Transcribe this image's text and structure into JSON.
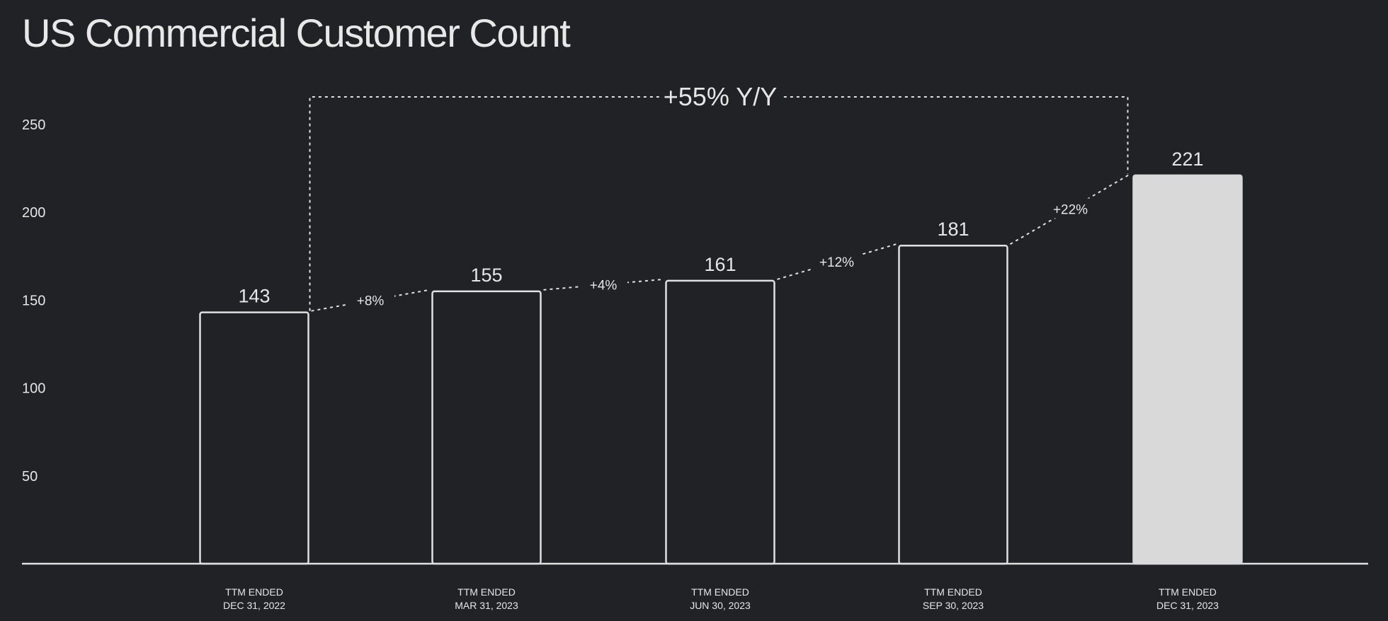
{
  "chart_data": {
    "type": "bar",
    "title": "US Commercial Customer Count",
    "categories": [
      [
        "TTM ENDED",
        "DEC 31, 2022"
      ],
      [
        "TTM ENDED",
        "MAR 31, 2023"
      ],
      [
        "TTM ENDED",
        "JUN 30, 2023"
      ],
      [
        "TTM ENDED",
        "SEP 30, 2023"
      ],
      [
        "TTM ENDED",
        "DEC 31, 2023"
      ]
    ],
    "values": [
      143,
      155,
      161,
      181,
      221
    ],
    "value_labels": [
      "143",
      "155",
      "161",
      "181",
      "221"
    ],
    "highlighted_index": 4,
    "yticks": [
      50,
      100,
      150,
      200,
      250
    ],
    "ylim": [
      0,
      270
    ],
    "grid": false,
    "growth_labels": [
      "+8%",
      "+4%",
      "+12%",
      "+22%"
    ],
    "yoy_label": "+55% Y/Y",
    "colors": {
      "background": "#212226",
      "bar_outline": "#e0e0e0",
      "bar_highlight_fill": "#d9d9d9",
      "text": "#e6e6e6"
    }
  }
}
